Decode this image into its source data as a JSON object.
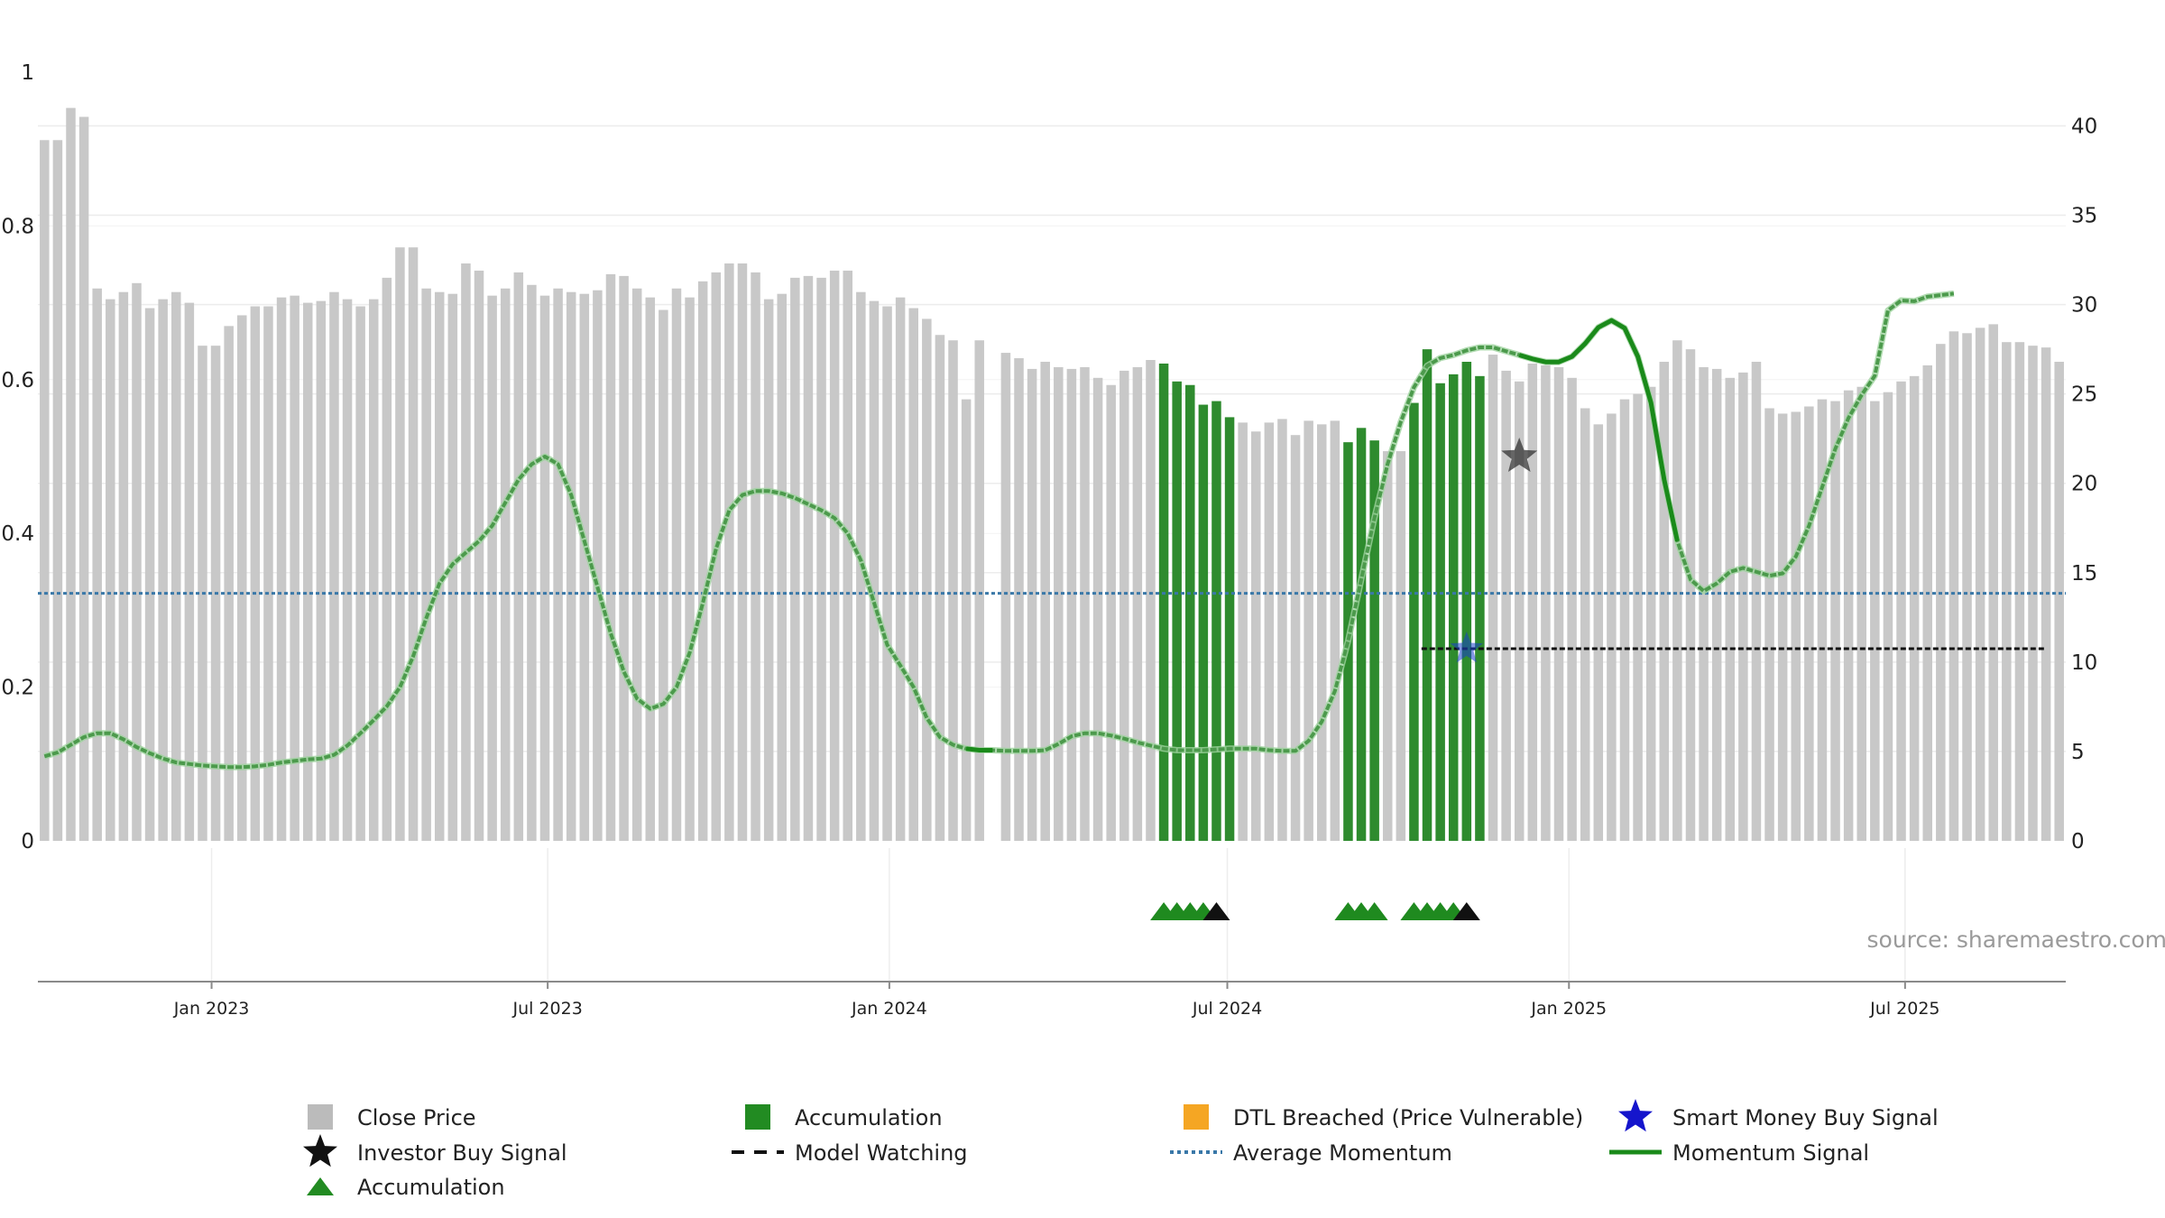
{
  "chart_data": {
    "type": "bar+line",
    "title": "",
    "source": "source: sharemaestro.com",
    "left_axis": {
      "ylim": [
        0,
        1
      ],
      "ticks": [
        0,
        0.2,
        0.4,
        0.6,
        0.8
      ],
      "tick_labels": [
        "0",
        "0.2",
        "0.4",
        "0.6",
        "0.8"
      ],
      "top_label": "1"
    },
    "right_axis": {
      "ylim": [
        0,
        43
      ],
      "ticks": [
        0,
        5,
        10,
        15,
        20,
        25,
        30,
        35,
        40
      ],
      "tick_labels": [
        "0",
        "5",
        "10",
        "15",
        "20",
        "25",
        "30",
        "35",
        "40"
      ]
    },
    "x_axis": {
      "start": "2022-10-03",
      "end": "2025-09-22",
      "ticks": [
        {
          "date": "2023-01-01",
          "label": "Jan 2023"
        },
        {
          "date": "2023-07-01",
          "label": "Jul 2023"
        },
        {
          "date": "2024-01-01",
          "label": "Jan 2024"
        },
        {
          "date": "2024-07-01",
          "label": "Jul 2024"
        },
        {
          "date": "2025-01-01",
          "label": "Jan 2025"
        },
        {
          "date": "2025-07-01",
          "label": "Jul 2025"
        }
      ]
    },
    "close_price": {
      "name": "Close Price",
      "axis": "right",
      "color": "#c8c8c8",
      "accumulation_color": "#2e8b2e",
      "values": [
        39.2,
        39.2,
        41.0,
        40.5,
        30.9,
        30.3,
        30.7,
        31.2,
        29.8,
        30.3,
        30.7,
        30.1,
        27.7,
        27.7,
        28.8,
        29.4,
        29.9,
        29.9,
        30.4,
        30.5,
        30.1,
        30.2,
        30.7,
        30.3,
        29.9,
        30.3,
        31.5,
        33.2,
        33.2,
        30.9,
        30.7,
        30.6,
        32.3,
        31.9,
        30.5,
        30.9,
        31.8,
        31.1,
        30.5,
        30.9,
        30.7,
        30.6,
        30.8,
        31.7,
        31.6,
        30.9,
        30.4,
        29.7,
        30.9,
        30.4,
        31.3,
        31.8,
        32.3,
        32.3,
        31.8,
        30.3,
        30.6,
        31.5,
        31.6,
        31.5,
        31.9,
        31.9,
        30.7,
        30.2,
        29.9,
        30.4,
        29.8,
        29.2,
        28.3,
        28.0,
        24.7,
        28.0,
        null,
        27.3,
        27.0,
        26.4,
        26.8,
        26.5,
        26.4,
        26.5,
        25.9,
        25.5,
        26.3,
        26.5,
        26.9,
        26.7,
        25.7,
        25.5,
        24.4,
        24.6,
        23.7,
        23.4,
        22.9,
        23.4,
        23.6,
        22.7,
        23.5,
        23.3,
        23.5,
        22.3,
        23.1,
        22.4,
        21.8,
        21.8,
        24.5,
        27.5,
        25.6,
        26.1,
        26.8,
        26.0,
        27.2,
        26.3,
        25.7,
        26.7,
        26.6,
        26.5,
        25.9,
        24.2,
        23.3,
        23.9,
        24.7,
        25.0,
        25.4,
        26.8,
        28.0,
        27.5,
        26.5,
        26.4,
        25.9,
        26.2,
        26.8,
        24.2,
        23.9,
        24.0,
        24.3,
        24.7,
        24.6,
        25.2,
        25.4,
        24.6,
        25.1,
        25.7,
        26.0,
        26.6,
        27.8,
        28.5,
        28.4,
        28.7,
        28.9,
        27.9,
        27.9,
        27.7,
        27.6,
        26.8
      ],
      "accumulation_weeks": [
        85,
        86,
        87,
        88,
        89,
        90,
        99,
        100,
        101,
        104,
        105,
        106,
        107,
        108,
        109
      ]
    },
    "momentum_signal": {
      "name": "Momentum Signal",
      "axis": "left",
      "color": "#1a8a1a",
      "values": [
        0.11,
        0.115,
        0.125,
        0.135,
        0.14,
        0.14,
        0.132,
        0.122,
        0.114,
        0.107,
        0.102,
        0.1,
        0.098,
        0.097,
        0.096,
        0.096,
        0.097,
        0.099,
        0.102,
        0.104,
        0.106,
        0.107,
        0.112,
        0.124,
        0.14,
        0.157,
        0.175,
        0.2,
        0.24,
        0.29,
        0.335,
        0.36,
        0.375,
        0.39,
        0.41,
        0.44,
        0.47,
        0.49,
        0.5,
        0.49,
        0.45,
        0.39,
        0.33,
        0.27,
        0.22,
        0.185,
        0.172,
        0.178,
        0.2,
        0.245,
        0.31,
        0.38,
        0.43,
        0.45,
        0.455,
        0.455,
        0.452,
        0.446,
        0.438,
        0.43,
        0.42,
        0.4,
        0.365,
        0.31,
        0.255,
        0.228,
        0.2,
        0.16,
        0.135,
        0.125,
        0.12,
        0.118,
        0.118,
        0.117,
        0.117,
        0.117,
        0.118,
        0.126,
        0.136,
        0.14,
        0.14,
        0.137,
        0.133,
        0.128,
        0.124,
        0.12,
        0.118,
        0.118,
        0.118,
        0.119,
        0.12,
        0.12,
        0.12,
        0.118,
        0.117,
        0.117,
        0.13,
        0.155,
        0.195,
        0.26,
        0.34,
        0.42,
        0.49,
        0.545,
        0.59,
        0.618,
        0.628,
        0.632,
        0.638,
        0.642,
        0.642,
        0.637,
        0.632,
        0.627,
        0.623,
        0.623,
        0.63,
        0.647,
        0.668,
        0.677,
        0.667,
        0.63,
        0.57,
        0.47,
        0.39,
        0.34,
        0.325,
        0.335,
        0.35,
        0.355,
        0.35,
        0.345,
        0.348,
        0.37,
        0.41,
        0.46,
        0.51,
        0.55,
        0.58,
        0.605,
        0.69,
        0.703,
        0.702,
        0.708,
        0.71,
        0.712
      ],
      "strong_segments": [
        [
          70,
          72
        ],
        [
          112,
          124
        ],
        [
          145,
          152
        ]
      ]
    },
    "average_momentum": {
      "name": "Average Momentum",
      "axis": "left",
      "value": 0.322,
      "color": "#3a78a8"
    },
    "model_watching": {
      "name": "Model Watching",
      "axis": "left",
      "value": 0.25,
      "from_week": 108,
      "to_week": 152,
      "color": "#111111"
    },
    "investor_buy_signal": {
      "name": "Investor Buy Signal",
      "week": 112,
      "value": 0.5,
      "color": "#333333"
    },
    "smart_money_buy_signal": {
      "name": "Smart Money Buy Signal",
      "week": 108,
      "value": 0.25,
      "color": "#1a3fcc"
    },
    "accumulation_markers": {
      "name": "Accumulation",
      "green_weeks": [
        85,
        86,
        87,
        88,
        99,
        100,
        101,
        104,
        105,
        106,
        107
      ],
      "black_weeks": [
        89,
        108
      ]
    },
    "legend": [
      {
        "label": "Close Price",
        "symbol": "square",
        "color": "#bbbbbb"
      },
      {
        "label": "Accumulation",
        "symbol": "square",
        "color": "#228b22"
      },
      {
        "label": "DTL Breached (Price Vulnerable)",
        "symbol": "square",
        "color": "#f5a623"
      },
      {
        "label": "Smart Money Buy Signal",
        "symbol": "star",
        "color": "#1515cc"
      },
      {
        "label": "Investor Buy Signal",
        "symbol": "star",
        "color": "#111111"
      },
      {
        "label": "Model Watching",
        "symbol": "dash",
        "color": "#111111"
      },
      {
        "label": "Average Momentum",
        "symbol": "dot",
        "color": "#3a78a8"
      },
      {
        "label": "Momentum Signal",
        "symbol": "line",
        "color": "#1a8a1a"
      },
      {
        "label": "Accumulation",
        "symbol": "triangle",
        "color": "#228b22"
      }
    ]
  }
}
